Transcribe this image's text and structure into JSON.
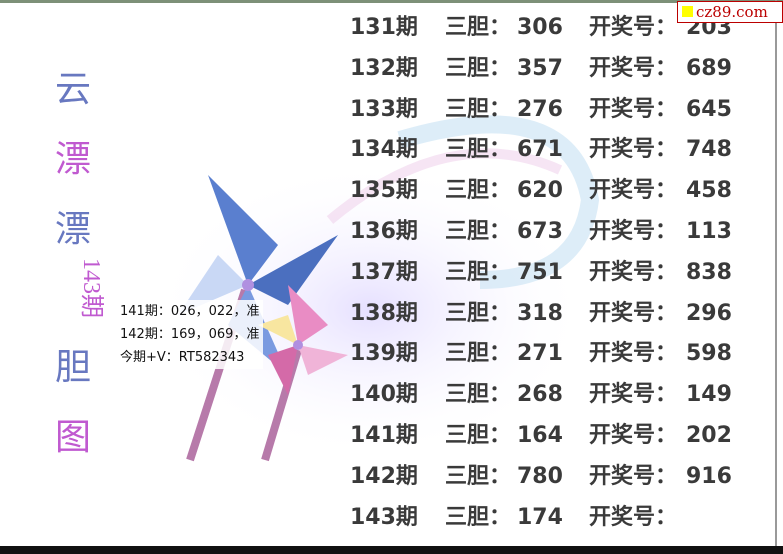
{
  "title_chars": [
    "云",
    "漂",
    "漂",
    "胆",
    "图"
  ],
  "period_label": "143期",
  "notes": [
    "141期：026，022，准",
    "142期：169，069，准",
    "今期+V：RT582343"
  ],
  "watermark": "cz89.com",
  "labels": {
    "sandan": "三胆：",
    "kaijiang": "开奖号："
  },
  "rows": [
    {
      "period": "131期",
      "sandan": "306",
      "kaijiang": "203"
    },
    {
      "period": "132期",
      "sandan": "357",
      "kaijiang": "689"
    },
    {
      "period": "133期",
      "sandan": "276",
      "kaijiang": "645"
    },
    {
      "period": "134期",
      "sandan": "671",
      "kaijiang": "748"
    },
    {
      "period": "135期",
      "sandan": "620",
      "kaijiang": "458"
    },
    {
      "period": "136期",
      "sandan": "673",
      "kaijiang": "113"
    },
    {
      "period": "137期",
      "sandan": "751",
      "kaijiang": "838"
    },
    {
      "period": "138期",
      "sandan": "318",
      "kaijiang": "296"
    },
    {
      "period": "139期",
      "sandan": "271",
      "kaijiang": "598"
    },
    {
      "period": "140期",
      "sandan": "268",
      "kaijiang": "149"
    },
    {
      "period": "141期",
      "sandan": "164",
      "kaijiang": "202"
    },
    {
      "period": "142期",
      "sandan": "780",
      "kaijiang": "916"
    },
    {
      "period": "143期",
      "sandan": "174",
      "kaijiang": ""
    }
  ]
}
